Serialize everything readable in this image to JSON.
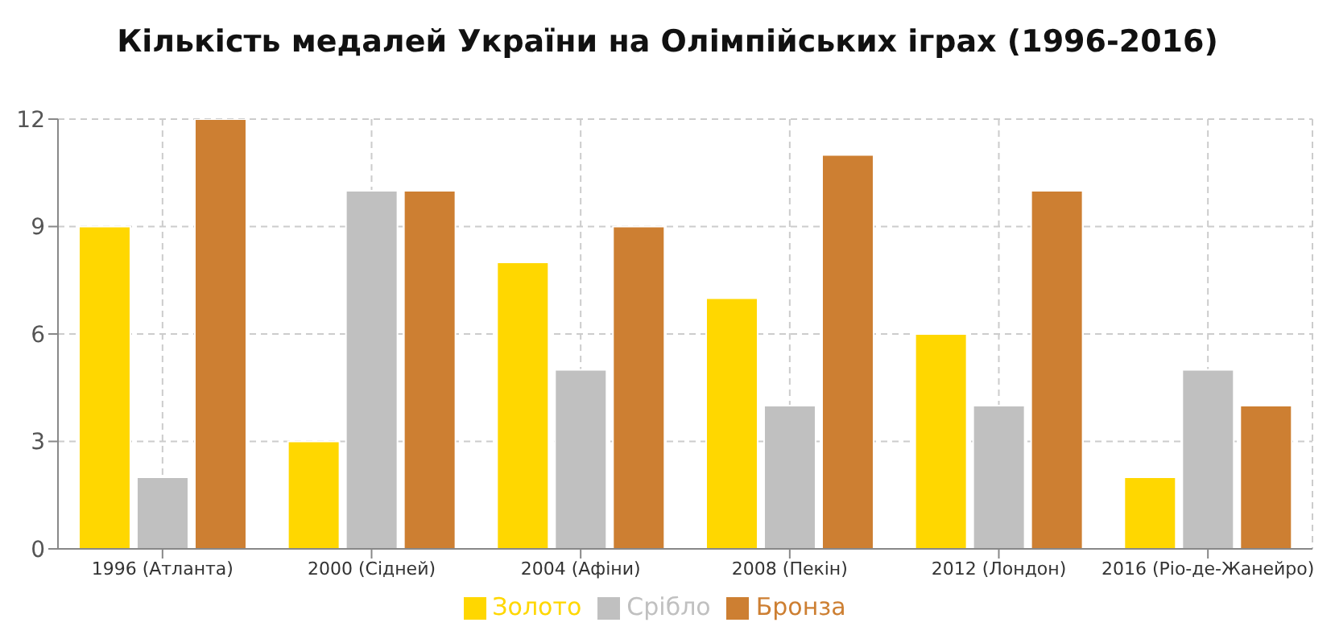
{
  "chart_data": {
    "type": "bar",
    "title": "Кількість медалей України на Олімпійських іграх (1996-2016)",
    "categories": [
      "1996 (Атланта)",
      "2000 (Сідней)",
      "2004 (Афіни)",
      "2008 (Пекін)",
      "2012 (Лондон)",
      "2016 (Ріо-де-Жанейро)"
    ],
    "series": [
      {
        "name": "Золото",
        "color": "#ffd700",
        "values": [
          9,
          3,
          8,
          7,
          6,
          2
        ]
      },
      {
        "name": "Срібло",
        "color": "#c0c0c0",
        "values": [
          2,
          10,
          5,
          4,
          4,
          5
        ]
      },
      {
        "name": "Бронза",
        "color": "#cd7f32",
        "values": [
          12,
          10,
          9,
          11,
          10,
          4
        ]
      }
    ],
    "ylim": [
      0,
      12
    ],
    "yticks": [
      0,
      3,
      6,
      9,
      12
    ],
    "grid": true,
    "legend": "bottom"
  }
}
